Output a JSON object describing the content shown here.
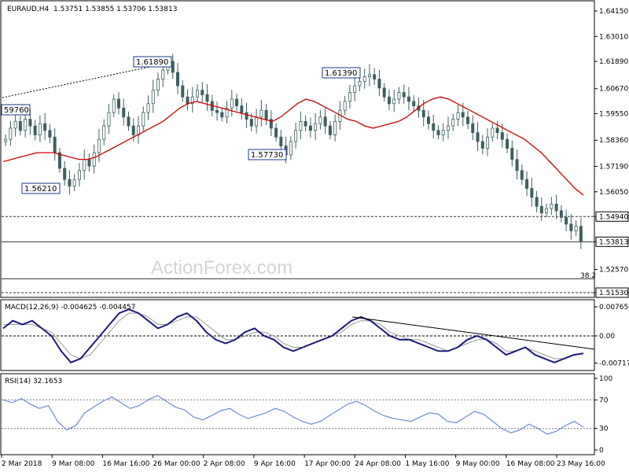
{
  "header": {
    "symbol": "EURAUD,H4",
    "ohlc": "1.53751 1.53855 1.53706 1.53813",
    "macd_label": "MACD(12,26,9) -0.004625 -0.004457",
    "rsi_label": "RSI(14) 32.1653"
  },
  "watermark": "ActionForex.com",
  "fib_label": "38.2",
  "colors": {
    "candle": "#3f5f5f",
    "ma": "#d00000",
    "macd": "#1a1a7a",
    "signal": "#999999",
    "rsi": "#6a8fcf",
    "level": "#333333",
    "hlines": "#222222"
  },
  "chart_data": [
    {
      "type": "candlestick",
      "name": "price",
      "ylim": [
        1.5153,
        1.6415
      ],
      "yticks": [
        1.6415,
        1.6301,
        1.6189,
        1.6067,
        1.5955,
        1.5836,
        1.5719,
        1.5605,
        1.5494,
        1.5381,
        1.5257,
        1.5153
      ],
      "ytick_labels": [
        "1.64150",
        "1.63010",
        "1.61890",
        "1.60670",
        "1.59550",
        "1.58360",
        "1.57190",
        "1.56050",
        "1.54940",
        "1.53813",
        "1.52570",
        "1.51530"
      ],
      "highlight_ticks": [
        "1.54940",
        "1.53813",
        "1.51530"
      ],
      "callouts": [
        {
          "label": "1.61890",
          "x": "26 Mar 2018",
          "y": 1.6189
        },
        {
          "label": "1.61390",
          "x": "24 Apr 2018",
          "y": 1.6139
        },
        {
          "label": "1.57730",
          "x": "12 Apr 2018",
          "y": 1.5773
        },
        {
          "label": "1.56210",
          "x": "13 Mar 2018",
          "y": 1.5621
        },
        {
          "label": "59760",
          "x": "2 Mar 2018",
          "y": 1.5976
        }
      ],
      "levels": [
        {
          "value": 1.5494,
          "style": "dashed"
        },
        {
          "value": 1.5381,
          "style": "solid"
        },
        {
          "value": 1.5215,
          "style": "solid"
        },
        {
          "value": 1.5153,
          "style": "dashed"
        }
      ],
      "close": [
        1.584,
        1.589,
        1.592,
        1.588,
        1.593,
        1.59,
        1.586,
        1.591,
        1.588,
        1.585,
        1.578,
        1.571,
        1.566,
        1.563,
        1.566,
        1.57,
        1.575,
        1.572,
        1.578,
        1.584,
        1.59,
        1.596,
        1.602,
        1.598,
        1.594,
        1.59,
        1.586,
        1.59,
        1.596,
        1.6,
        1.606,
        1.611,
        1.615,
        1.619,
        1.614,
        1.608,
        1.603,
        1.6,
        1.603,
        1.606,
        1.604,
        1.601,
        1.597,
        1.596,
        1.594,
        1.598,
        1.602,
        1.599,
        1.596,
        1.593,
        1.59,
        1.594,
        1.597,
        1.593,
        1.589,
        1.585,
        1.581,
        1.577,
        1.583,
        1.588,
        1.592,
        1.59,
        1.588,
        1.591,
        1.594,
        1.59,
        1.586,
        1.592,
        1.597,
        1.601,
        1.605,
        1.608,
        1.61,
        1.612,
        1.613,
        1.611,
        1.607,
        1.603,
        1.6,
        1.602,
        1.605,
        1.603,
        1.601,
        1.599,
        1.597,
        1.594,
        1.591,
        1.588,
        1.586,
        1.588,
        1.59,
        1.593,
        1.596,
        1.594,
        1.591,
        1.587,
        1.583,
        1.58,
        1.585,
        1.589,
        1.587,
        1.584,
        1.58,
        1.575,
        1.57,
        1.566,
        1.562,
        1.558,
        1.554,
        1.551,
        1.553,
        1.555,
        1.552,
        1.549,
        1.546,
        1.543,
        1.545,
        1.5381
      ],
      "ma": [
        1.574,
        1.575,
        1.576,
        1.577,
        1.578,
        1.578,
        1.578,
        1.577,
        1.576,
        1.575,
        1.575,
        1.576,
        1.578,
        1.58,
        1.582,
        1.584,
        1.586,
        1.588,
        1.59,
        1.592,
        1.595,
        1.598,
        1.6,
        1.601,
        1.6,
        1.599,
        1.598,
        1.597,
        1.596,
        1.595,
        1.594,
        1.593,
        1.592,
        1.594,
        1.597,
        1.6,
        1.602,
        1.601,
        1.599,
        1.597,
        1.595,
        1.593,
        1.592,
        1.59,
        1.589,
        1.59,
        1.591,
        1.592,
        1.594,
        1.597,
        1.6,
        1.602,
        1.603,
        1.602,
        1.6,
        1.598,
        1.596,
        1.594,
        1.592,
        1.59,
        1.588,
        1.586,
        1.584,
        1.581,
        1.578,
        1.574,
        1.57,
        1.566,
        1.562,
        1.559
      ]
    },
    {
      "type": "line",
      "name": "MACD(12,26,9)",
      "ylim": [
        -0.0085,
        0.0085
      ],
      "ytick_labels": [
        "0.00765",
        "0.00",
        "-0.007171"
      ],
      "macd": [
        0.002,
        0.004,
        0.003,
        0.004,
        0.002,
        0.0,
        -0.004,
        -0.007,
        -0.006,
        -0.003,
        0.0,
        0.003,
        0.006,
        0.007,
        0.006,
        0.004,
        0.002,
        0.003,
        0.005,
        0.006,
        0.004,
        0.001,
        -0.001,
        -0.002,
        -0.001,
        0.001,
        0.002,
        0.0,
        -0.001,
        -0.003,
        -0.004,
        -0.003,
        -0.002,
        -0.001,
        0.0,
        0.002,
        0.004,
        0.005,
        0.004,
        0.002,
        0.0,
        -0.001,
        -0.001,
        -0.002,
        -0.003,
        -0.004,
        -0.004,
        -0.003,
        -0.001,
        0.0,
        -0.001,
        -0.003,
        -0.005,
        -0.004,
        -0.003,
        -0.005,
        -0.006,
        -0.007,
        -0.006,
        -0.005,
        -0.0046
      ],
      "signal": [
        0.003,
        0.003,
        0.003,
        0.003,
        0.002,
        0.001,
        -0.002,
        -0.005,
        -0.006,
        -0.005,
        -0.002,
        0.001,
        0.004,
        0.006,
        0.006,
        0.005,
        0.003,
        0.003,
        0.004,
        0.005,
        0.005,
        0.003,
        0.001,
        -0.001,
        -0.001,
        0.0,
        0.001,
        0.001,
        0.0,
        -0.002,
        -0.003,
        -0.003,
        -0.002,
        -0.001,
        0.0,
        0.001,
        0.003,
        0.004,
        0.004,
        0.003,
        0.001,
        0.0,
        -0.001,
        -0.001,
        -0.002,
        -0.003,
        -0.004,
        -0.003,
        -0.002,
        -0.001,
        -0.001,
        -0.002,
        -0.004,
        -0.004,
        -0.003,
        -0.004,
        -0.005,
        -0.006,
        -0.006,
        -0.005,
        -0.0045
      ],
      "trendline": [
        [
          0.005,
          0.0
        ],
        [
          -0.0035,
          1.0
        ]
      ]
    },
    {
      "type": "line",
      "name": "RSI(14)",
      "ylim": [
        0,
        100
      ],
      "ytick_labels": [
        "100",
        "70",
        "30",
        "0"
      ],
      "levels": [
        70,
        30
      ],
      "values": [
        70,
        66,
        72,
        64,
        58,
        62,
        40,
        28,
        34,
        52,
        60,
        68,
        74,
        66,
        58,
        62,
        70,
        76,
        68,
        60,
        56,
        46,
        42,
        48,
        55,
        58,
        50,
        44,
        48,
        52,
        58,
        54,
        46,
        40,
        36,
        40,
        48,
        56,
        64,
        68,
        62,
        54,
        48,
        44,
        42,
        40,
        46,
        52,
        50,
        40,
        38,
        46,
        54,
        50,
        40,
        30,
        24,
        28,
        36,
        30,
        22,
        26,
        34,
        40,
        32
      ]
    }
  ],
  "x_labels": [
    "2 Mar 2018",
    "9 Mar 08:00",
    "16 Mar 16:00",
    "26 Mar 00:00",
    "2 Apr 08:00",
    "9 Apr 16:00",
    "17 Apr 00:00",
    "24 Apr 08:00",
    "1 May 16:00",
    "9 May 00:00",
    "16 May 08:00",
    "23 May 16:00"
  ]
}
